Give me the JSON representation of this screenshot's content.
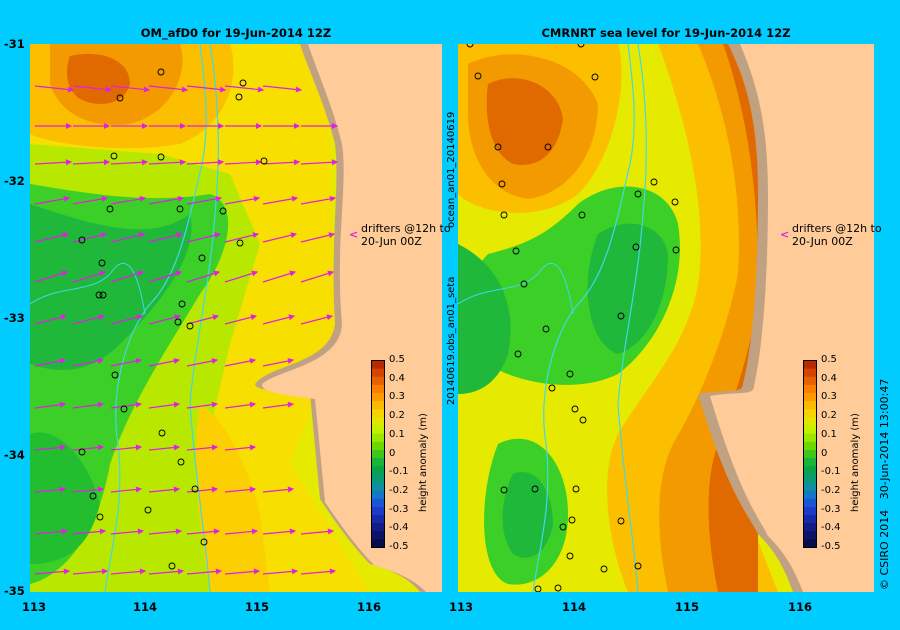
{
  "left_panel": {
    "title": "OM_afD0 for 19-Jun-2014 12Z",
    "drifter_note": [
      "drifters @12h to",
      "20-Jun 00Z"
    ]
  },
  "right_panel": {
    "title": "CMRNRT sea level  for 19-Jun-2014 12Z",
    "drifter_note": [
      "drifters @12h to",
      "20-Jun 00Z"
    ],
    "side_label_top": "ocean_an01_20140619",
    "side_label_bottom": "20140619.obs_an01_seta"
  },
  "axes": {
    "longitude_ticks": [
      "113",
      "114",
      "115",
      "116"
    ],
    "latitude_ticks": [
      "-31",
      "-32",
      "-33",
      "-34",
      "-35"
    ]
  },
  "colorbar": {
    "label": "height anomaly (m)",
    "ticks": [
      "0.5",
      "0.4",
      "0.3",
      "0.2",
      "0.1",
      "0",
      "-0.1",
      "-0.2",
      "-0.3",
      "-0.4",
      "-0.5"
    ],
    "colors": [
      "#fc7d00",
      "#fd9b00",
      "#fbb900",
      "#f4d300",
      "#e0e600",
      "#c3f000",
      "#9ae800",
      "#6cd800",
      "#3cc61e",
      "#1ab436",
      "#0aa34a",
      "#089a70",
      "#0e90a0",
      "#1479c4",
      "#1856d8",
      "#1a3cc8",
      "#1a2aa6",
      "#121c86",
      "#0c1466",
      "#080c4a"
    ],
    "top_colors": [
      "#b82a00",
      "#d44400",
      "#e66200"
    ]
  },
  "credit": {
    "org": "© CSIRO 2014",
    "timestamp": "30-Jun-2014 13:00:47"
  }
}
